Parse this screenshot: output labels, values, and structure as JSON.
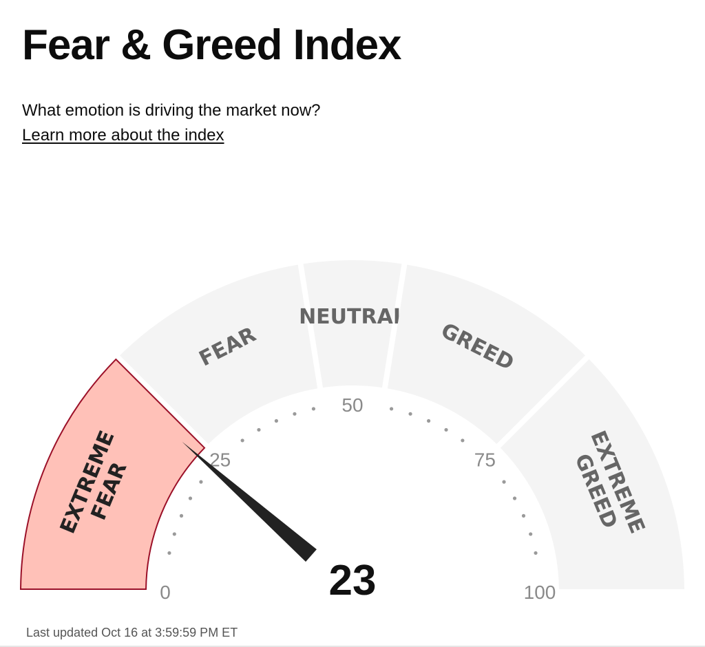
{
  "header": {
    "title": "Fear & Greed Index",
    "subtitle": "What emotion is driving the market now?",
    "learn_more_link": "Learn more about the index"
  },
  "gauge": {
    "score": 23,
    "score_label": "23",
    "min": 0,
    "max": 100,
    "bands": [
      {
        "lines": [
          "EXTREME",
          "FEAR"
        ],
        "from": 0,
        "to": 25,
        "active": true
      },
      {
        "lines": [
          "FEAR"
        ],
        "from": 25,
        "to": 45,
        "active": false
      },
      {
        "lines": [
          "NEUTRAL"
        ],
        "from": 45,
        "to": 55,
        "active": false
      },
      {
        "lines": [
          "GREED"
        ],
        "from": 55,
        "to": 75,
        "active": false
      },
      {
        "lines": [
          "EXTREME",
          "GREED"
        ],
        "from": 75,
        "to": 100,
        "active": false
      }
    ],
    "tick_labels": [
      {
        "value": 0,
        "text": "0"
      },
      {
        "value": 25,
        "text": "25"
      },
      {
        "value": 50,
        "text": "50"
      },
      {
        "value": 75,
        "text": "75"
      },
      {
        "value": 100,
        "text": "100"
      }
    ],
    "colors": {
      "inactive_band": "#f4f4f4",
      "active_band": "#ffc1b8",
      "active_band_border": "#9b1028",
      "needle": "#222222",
      "dots": "#9a9a9a"
    }
  },
  "footer": {
    "last_updated": "Last updated Oct 16 at 3:59:59 PM ET"
  }
}
